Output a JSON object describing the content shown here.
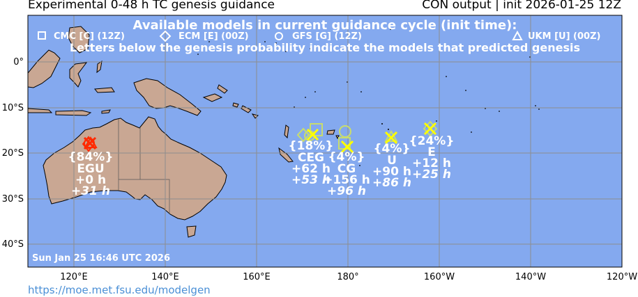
{
  "header": {
    "title_left": "Experimental 0-48 h TC genesis guidance",
    "title_right": "CON output | init 2026-01-25 12Z"
  },
  "legend": {
    "heading": "Available models in current guidance cycle (init time):",
    "models": [
      {
        "symbol": "square",
        "label": "CMC [C] (12Z)"
      },
      {
        "symbol": "diamond",
        "label": "ECM [E] (00Z)"
      },
      {
        "symbol": "circle",
        "label": "GFS [G] (12Z)"
      },
      {
        "symbol": "triangle",
        "label": "UKM [U] (00Z)"
      }
    ],
    "note": "Letters below the genesis probability indicate the models that predicted genesis"
  },
  "axes": {
    "lat_labels": [
      "0°",
      "10°S",
      "20°S",
      "30°S",
      "40°S"
    ],
    "lon_labels": [
      "120°E",
      "140°E",
      "160°E",
      "180°",
      "160°W",
      "140°W",
      "120°W"
    ]
  },
  "timestamp": "Sun Jan 25 16:46 UTC 2026",
  "credit": "https://moe.met.fsu.edu/modelgen",
  "colors": {
    "ocean": "#84a9ef",
    "land": "#c9a793",
    "grid": "#8d8d8d",
    "high_prob": "#ff2a00",
    "low_prob": "#ffff00",
    "low_prob_symbol": "#c8dc6e"
  },
  "systems": [
    {
      "name": "system-nw-australia",
      "lon": 123.8,
      "lat": -18.1,
      "prob": "{84%}",
      "models": "EGU",
      "times": [
        "+0 h",
        "+31 h"
      ]
    },
    {
      "name": "system-fiji-west",
      "lon": 172.0,
      "lat": -16.0,
      "prob": "{18%}",
      "models": "CEG",
      "times": [
        "+62 h",
        "+53 h"
      ]
    },
    {
      "name": "system-dateline",
      "lon": 180.0,
      "lat": -18.5,
      "prob": "{4%}",
      "models": "CG",
      "times": [
        "+156 h",
        "+96 h"
      ]
    },
    {
      "name": "system-samoa",
      "lon": 190.0,
      "lat": -16.5,
      "prob": "{4%}",
      "models": "U",
      "times": [
        "+90 h",
        "+86 h"
      ]
    },
    {
      "name": "system-east",
      "lon": 198.2,
      "lat": -14.7,
      "prob": "{24%}",
      "models": "E",
      "times": [
        "+12 h",
        "+25 h"
      ]
    }
  ]
}
